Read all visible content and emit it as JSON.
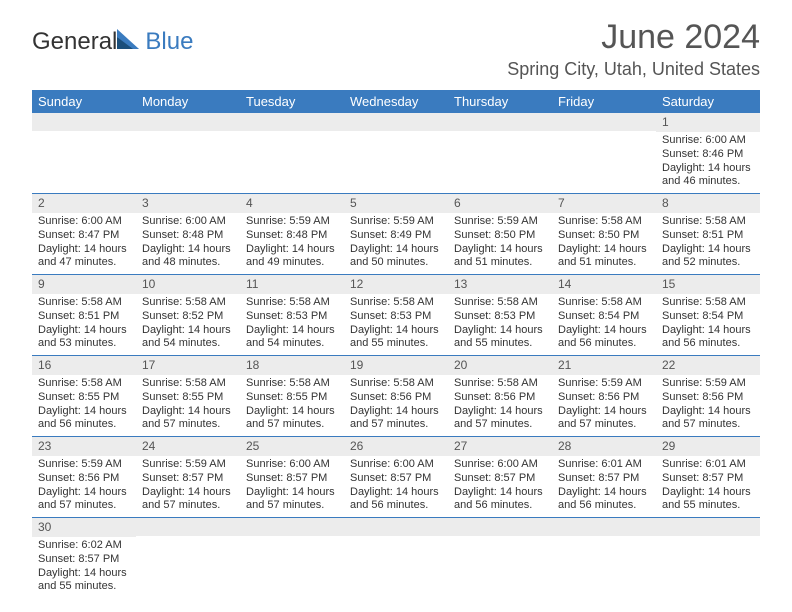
{
  "logo": {
    "general": "General",
    "blue": "Blue"
  },
  "title": "June 2024",
  "location": "Spring City, Utah, United States",
  "colors": {
    "header_bg": "#3a7bbf",
    "header_text": "#ffffff",
    "daynum_bg": "#ececec",
    "border": "#3a7bbf",
    "text": "#333333",
    "title_text": "#555555"
  },
  "day_names": [
    "Sunday",
    "Monday",
    "Tuesday",
    "Wednesday",
    "Thursday",
    "Friday",
    "Saturday"
  ],
  "weeks": [
    [
      null,
      null,
      null,
      null,
      null,
      null,
      {
        "n": "1",
        "sunrise": "6:00 AM",
        "sunset": "8:46 PM",
        "dh": "14",
        "dm": "46"
      }
    ],
    [
      {
        "n": "2",
        "sunrise": "6:00 AM",
        "sunset": "8:47 PM",
        "dh": "14",
        "dm": "47"
      },
      {
        "n": "3",
        "sunrise": "6:00 AM",
        "sunset": "8:48 PM",
        "dh": "14",
        "dm": "48"
      },
      {
        "n": "4",
        "sunrise": "5:59 AM",
        "sunset": "8:48 PM",
        "dh": "14",
        "dm": "49"
      },
      {
        "n": "5",
        "sunrise": "5:59 AM",
        "sunset": "8:49 PM",
        "dh": "14",
        "dm": "50"
      },
      {
        "n": "6",
        "sunrise": "5:59 AM",
        "sunset": "8:50 PM",
        "dh": "14",
        "dm": "51"
      },
      {
        "n": "7",
        "sunrise": "5:58 AM",
        "sunset": "8:50 PM",
        "dh": "14",
        "dm": "51"
      },
      {
        "n": "8",
        "sunrise": "5:58 AM",
        "sunset": "8:51 PM",
        "dh": "14",
        "dm": "52"
      }
    ],
    [
      {
        "n": "9",
        "sunrise": "5:58 AM",
        "sunset": "8:51 PM",
        "dh": "14",
        "dm": "53"
      },
      {
        "n": "10",
        "sunrise": "5:58 AM",
        "sunset": "8:52 PM",
        "dh": "14",
        "dm": "54"
      },
      {
        "n": "11",
        "sunrise": "5:58 AM",
        "sunset": "8:53 PM",
        "dh": "14",
        "dm": "54"
      },
      {
        "n": "12",
        "sunrise": "5:58 AM",
        "sunset": "8:53 PM",
        "dh": "14",
        "dm": "55"
      },
      {
        "n": "13",
        "sunrise": "5:58 AM",
        "sunset": "8:53 PM",
        "dh": "14",
        "dm": "55"
      },
      {
        "n": "14",
        "sunrise": "5:58 AM",
        "sunset": "8:54 PM",
        "dh": "14",
        "dm": "56"
      },
      {
        "n": "15",
        "sunrise": "5:58 AM",
        "sunset": "8:54 PM",
        "dh": "14",
        "dm": "56"
      }
    ],
    [
      {
        "n": "16",
        "sunrise": "5:58 AM",
        "sunset": "8:55 PM",
        "dh": "14",
        "dm": "56"
      },
      {
        "n": "17",
        "sunrise": "5:58 AM",
        "sunset": "8:55 PM",
        "dh": "14",
        "dm": "57"
      },
      {
        "n": "18",
        "sunrise": "5:58 AM",
        "sunset": "8:55 PM",
        "dh": "14",
        "dm": "57"
      },
      {
        "n": "19",
        "sunrise": "5:58 AM",
        "sunset": "8:56 PM",
        "dh": "14",
        "dm": "57"
      },
      {
        "n": "20",
        "sunrise": "5:58 AM",
        "sunset": "8:56 PM",
        "dh": "14",
        "dm": "57"
      },
      {
        "n": "21",
        "sunrise": "5:59 AM",
        "sunset": "8:56 PM",
        "dh": "14",
        "dm": "57"
      },
      {
        "n": "22",
        "sunrise": "5:59 AM",
        "sunset": "8:56 PM",
        "dh": "14",
        "dm": "57"
      }
    ],
    [
      {
        "n": "23",
        "sunrise": "5:59 AM",
        "sunset": "8:56 PM",
        "dh": "14",
        "dm": "57"
      },
      {
        "n": "24",
        "sunrise": "5:59 AM",
        "sunset": "8:57 PM",
        "dh": "14",
        "dm": "57"
      },
      {
        "n": "25",
        "sunrise": "6:00 AM",
        "sunset": "8:57 PM",
        "dh": "14",
        "dm": "57"
      },
      {
        "n": "26",
        "sunrise": "6:00 AM",
        "sunset": "8:57 PM",
        "dh": "14",
        "dm": "56"
      },
      {
        "n": "27",
        "sunrise": "6:00 AM",
        "sunset": "8:57 PM",
        "dh": "14",
        "dm": "56"
      },
      {
        "n": "28",
        "sunrise": "6:01 AM",
        "sunset": "8:57 PM",
        "dh": "14",
        "dm": "56"
      },
      {
        "n": "29",
        "sunrise": "6:01 AM",
        "sunset": "8:57 PM",
        "dh": "14",
        "dm": "55"
      }
    ],
    [
      {
        "n": "30",
        "sunrise": "6:02 AM",
        "sunset": "8:57 PM",
        "dh": "14",
        "dm": "55"
      },
      null,
      null,
      null,
      null,
      null,
      null
    ]
  ],
  "labels": {
    "sunrise": "Sunrise:",
    "sunset": "Sunset:",
    "daylight": "Daylight:",
    "hours": "hours",
    "and": "and",
    "minutes": "minutes."
  }
}
